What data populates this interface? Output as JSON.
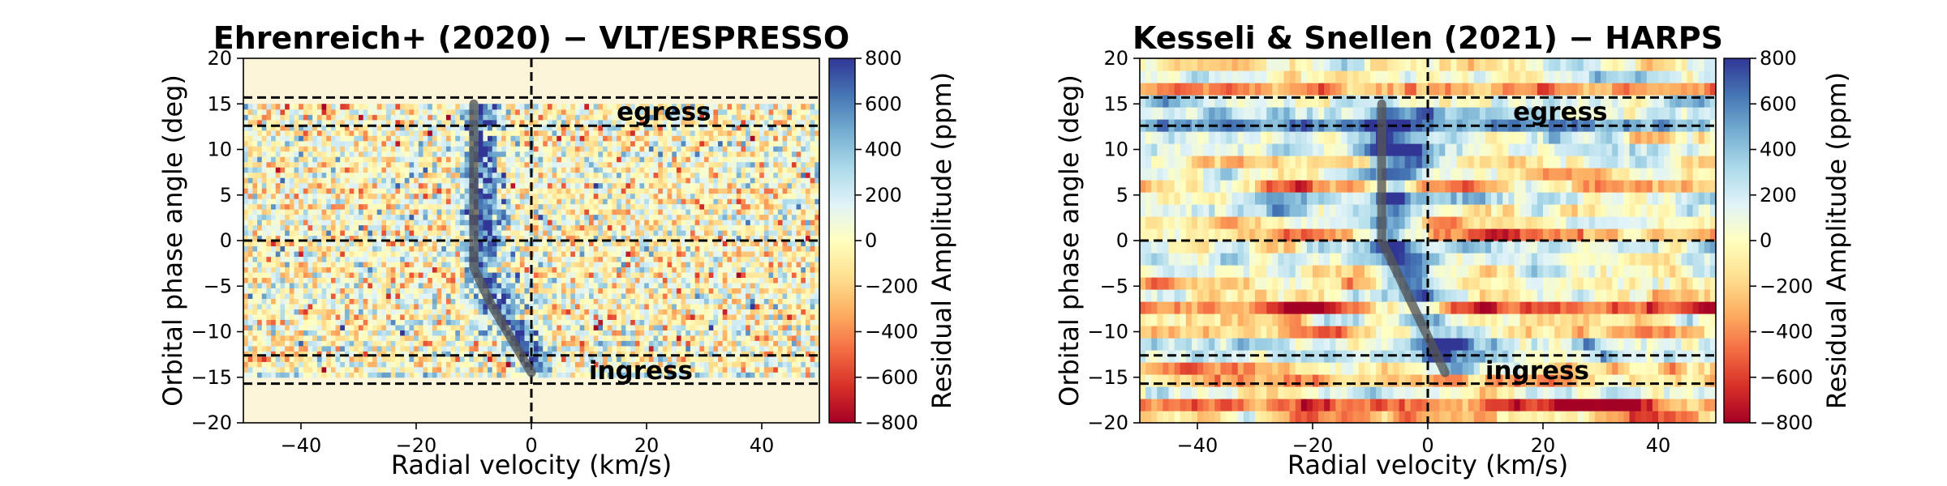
{
  "chart_data": [
    {
      "type": "heatmap",
      "title": "Ehrenreich+ (2020) − VLT/ESPRESSO",
      "xlabel": "Radial velocity (km/s)",
      "ylabel": "Orbital phase angle (deg)",
      "xlim": [
        -50,
        50
      ],
      "ylim": [
        -20,
        20
      ],
      "xticks": [
        -40,
        -20,
        0,
        20,
        40
      ],
      "yticks": [
        -20,
        -15,
        -10,
        -5,
        0,
        5,
        10,
        15,
        20
      ],
      "data_phase_range": [
        -15,
        15
      ],
      "background_color": "#fdf5da",
      "hlines": [
        15.7,
        12.6,
        0,
        -12.6,
        -15.7
      ],
      "vline": 0,
      "annotations": [
        {
          "text": "egress",
          "x": 23,
          "y": 14.2
        },
        {
          "text": "ingress",
          "x": 19,
          "y": -14.2
        }
      ],
      "trace": [
        [
          -10,
          15
        ],
        [
          -10,
          5
        ],
        [
          -10,
          -3
        ],
        [
          -7,
          -7
        ],
        [
          0,
          -14.5
        ]
      ],
      "trace_color": "#555555",
      "colorbar": {
        "label": "Residual Amplitude (ppm)",
        "range": [
          -800,
          800
        ],
        "ticks": [
          800,
          600,
          400,
          200,
          0,
          -200,
          -400,
          -600,
          -800
        ],
        "tick_labels": [
          "800",
          "600",
          "400",
          "200",
          "0",
          "−200",
          "−400",
          "−600",
          "−800"
        ],
        "colormap": "RdYlBu"
      }
    },
    {
      "type": "heatmap",
      "title": "Kesseli & Snellen (2021) − HARPS",
      "xlabel": "Radial velocity (km/s)",
      "ylabel": "Orbital phase angle (deg)",
      "xlim": [
        -50,
        50
      ],
      "ylim": [
        -20,
        20
      ],
      "xticks": [
        -40,
        -20,
        0,
        20,
        40
      ],
      "yticks": [
        -20,
        -15,
        -10,
        -5,
        0,
        5,
        10,
        15,
        20
      ],
      "data_phase_range": [
        -20,
        20
      ],
      "hlines": [
        15.7,
        12.6,
        0,
        -12.6,
        -15.7
      ],
      "vline": 0,
      "annotations": [
        {
          "text": "egress",
          "x": 23,
          "y": 14.2
        },
        {
          "text": "ingress",
          "x": 19,
          "y": -14.2
        }
      ],
      "trace": [
        [
          -8,
          15
        ],
        [
          -8,
          0
        ],
        [
          3,
          -14.5
        ]
      ],
      "trace_color": "#555555",
      "colorbar": {
        "label": "Residual Amplitude (ppm)",
        "range": [
          -800,
          800
        ],
        "ticks": [
          800,
          600,
          400,
          200,
          0,
          -200,
          -400,
          -600,
          -800
        ],
        "tick_labels": [
          "800",
          "600",
          "400",
          "200",
          "0",
          "−200",
          "−400",
          "−600",
          "−800"
        ],
        "colormap": "RdYlBu"
      }
    }
  ]
}
